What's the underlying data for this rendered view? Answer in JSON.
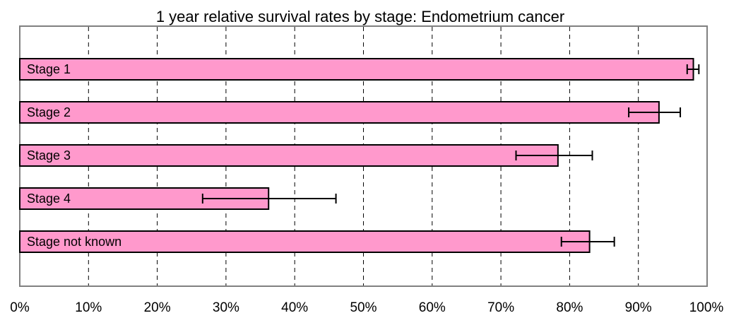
{
  "chart_data": {
    "type": "bar",
    "orientation": "horizontal",
    "title": "1 year relative survival rates by stage: Endometrium cancer",
    "xlabel": "",
    "ylabel": "",
    "xlim": [
      0,
      100
    ],
    "x_ticks": [
      "0%",
      "10%",
      "20%",
      "30%",
      "40%",
      "50%",
      "60%",
      "70%",
      "80%",
      "90%",
      "100%"
    ],
    "grid": "vertical dashed",
    "legend": "none",
    "bar_color": "#ff99cc",
    "bar_edge_color": "#000000",
    "categories": [
      "Stage 1",
      "Stage 2",
      "Stage 3",
      "Stage 4",
      "Stage not known"
    ],
    "values": [
      98.0,
      93.0,
      78.3,
      36.2,
      82.9
    ],
    "error_low": [
      97.1,
      88.6,
      72.2,
      26.6,
      78.8
    ],
    "error_high": [
      98.8,
      96.1,
      83.3,
      46.0,
      86.5
    ]
  }
}
